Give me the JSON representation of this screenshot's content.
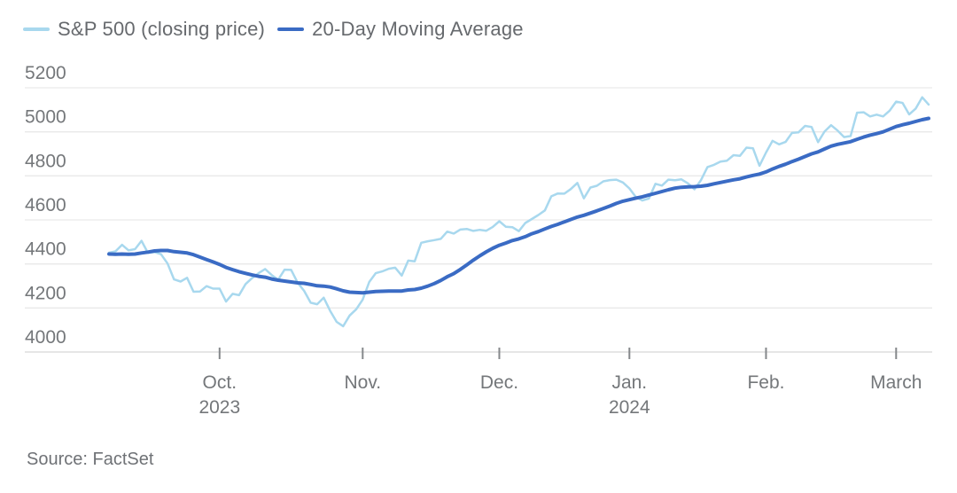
{
  "legend": [
    {
      "label": "S&P 500 (closing price)",
      "color": "#a8d8ee"
    },
    {
      "label": "20-Day Moving Average",
      "color": "#3a6bc4"
    }
  ],
  "source": "Source: FactSet",
  "chart_data": {
    "type": "line",
    "title": "",
    "xlabel": "",
    "ylabel": "",
    "ylim": [
      4000,
      5200
    ],
    "y_ticks": [
      4000,
      4200,
      4400,
      4600,
      4800,
      5000,
      5200
    ],
    "grid": true,
    "legend_position": "top-left",
    "x_ticks": [
      {
        "label": "Oct.",
        "sublabel": "2023",
        "index": 17
      },
      {
        "label": "Nov.",
        "sublabel": "",
        "index": 39
      },
      {
        "label": "Dec.",
        "sublabel": "",
        "index": 60
      },
      {
        "label": "Jan.",
        "sublabel": "2024",
        "index": 80
      },
      {
        "label": "Feb.",
        "sublabel": "",
        "index": 101
      },
      {
        "label": "March",
        "sublabel": "",
        "index": 121
      }
    ],
    "series": [
      {
        "name": "S&P 500 (closing price)",
        "color": "#a8d8ee",
        "width": 2.5,
        "values": [
          4451,
          4457,
          4487,
          4462,
          4467,
          4505,
          4450,
          4454,
          4444,
          4402,
          4330,
          4320,
          4337,
          4274,
          4275,
          4299,
          4288,
          4288,
          4229,
          4264,
          4258,
          4309,
          4336,
          4358,
          4377,
          4350,
          4328,
          4374,
          4373,
          4315,
          4278,
          4224,
          4217,
          4247,
          4187,
          4137,
          4117,
          4166,
          4194,
          4238,
          4318,
          4358,
          4366,
          4378,
          4383,
          4347,
          4415,
          4412,
          4496,
          4503,
          4508,
          4514,
          4547,
          4538,
          4556,
          4559,
          4550,
          4555,
          4551,
          4568,
          4594,
          4569,
          4567,
          4549,
          4586,
          4604,
          4622,
          4643,
          4707,
          4720,
          4719,
          4740,
          4768,
          4698,
          4747,
          4755,
          4775,
          4781,
          4783,
          4770,
          4743,
          4704,
          4688,
          4697,
          4764,
          4756,
          4783,
          4780,
          4784,
          4766,
          4739,
          4781,
          4840,
          4850,
          4865,
          4869,
          4894,
          4891,
          4928,
          4925,
          4846,
          4906,
          4959,
          4943,
          4954,
          4995,
          4998,
          5027,
          5022,
          4953,
          5001,
          5030,
          5006,
          4976,
          4981,
          5087,
          5089,
          5070,
          5078,
          5070,
          5096,
          5137,
          5131,
          5079,
          5105,
          5157,
          5124
        ]
      },
      {
        "name": "20-Day Moving Average",
        "color": "#3a6bc4",
        "width": 4,
        "values": [
          4445,
          4444,
          4445,
          4444,
          4445,
          4450,
          4454,
          4459,
          4461,
          4461,
          4456,
          4453,
          4450,
          4442,
          4431,
          4420,
          4409,
          4398,
          4384,
          4374,
          4365,
          4357,
          4350,
          4344,
          4340,
          4332,
          4326,
          4322,
          4318,
          4314,
          4312,
          4307,
          4301,
          4299,
          4295,
          4287,
          4278,
          4272,
          4270,
          4269,
          4272,
          4275,
          4276,
          4277,
          4277,
          4277,
          4282,
          4284,
          4290,
          4299,
          4311,
          4325,
          4342,
          4356,
          4375,
          4396,
          4417,
          4437,
          4455,
          4471,
          4485,
          4495,
          4506,
          4514,
          4524,
          4537,
          4547,
          4559,
          4570,
          4580,
          4591,
          4602,
          4613,
          4621,
          4631,
          4641,
          4652,
          4663,
          4675,
          4685,
          4692,
          4699,
          4705,
          4713,
          4721,
          4729,
          4737,
          4744,
          4748,
          4750,
          4751,
          4753,
          4757,
          4764,
          4770,
          4776,
          4782,
          4787,
          4795,
          4802,
          4808,
          4818,
          4831,
          4843,
          4853,
          4865,
          4876,
          4888,
          4900,
          4909,
          4922,
          4935,
          4943,
          4949,
          4955,
          4966,
          4976,
          4985,
          4992,
          5000,
          5012,
          5024,
          5032,
          5039,
          5047,
          5055,
          5061
        ]
      }
    ]
  }
}
